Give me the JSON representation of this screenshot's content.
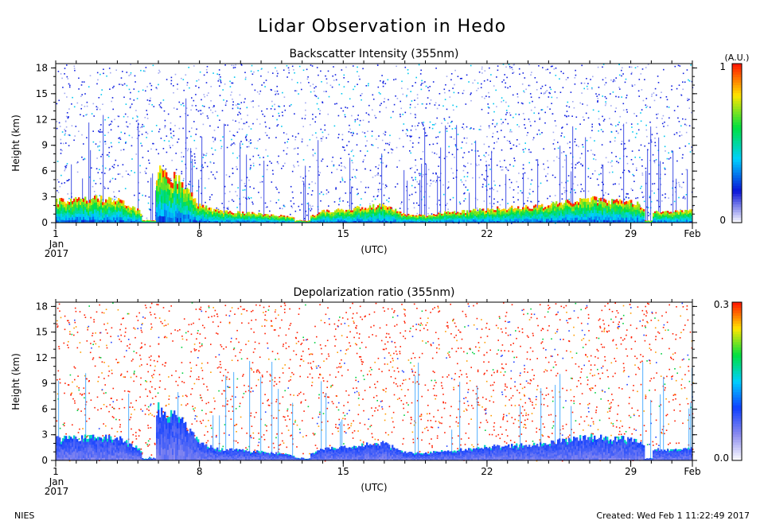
{
  "title": "Lidar Observation in Hedo",
  "footer": {
    "left": "NIES",
    "right": "Created: Wed Feb  1 11:22:49 2017"
  },
  "chart_data": [
    {
      "type": "heatmap",
      "title": "Backscatter Intensity (355nm)",
      "ylabel": "Height (km)",
      "xlabel": "(UTC)",
      "x_tick_labels": [
        "1",
        "8",
        "15",
        "22",
        "29",
        "Feb"
      ],
      "x_tick_sublabels": [
        "Jan",
        "2017"
      ],
      "x_tick_days": [
        1,
        8,
        15,
        22,
        29,
        32
      ],
      "xlim_days": [
        1,
        32
      ],
      "y_tick_labels": [
        "0",
        "3",
        "6",
        "9",
        "12",
        "15",
        "18"
      ],
      "ylim": [
        0,
        18.5
      ],
      "colorbar": {
        "min_label": "0",
        "max_label": "1",
        "unit": "(A.U.)"
      },
      "colorscale": [
        "#ffffff",
        "#0a14d8",
        "#00d0ff",
        "#00e040",
        "#ffe600",
        "#ff1400"
      ],
      "approx_cloud_top_km": [
        [
          1,
          2.5
        ],
        [
          2,
          2.6
        ],
        [
          3,
          2.8
        ],
        [
          4,
          2.7
        ],
        [
          5,
          1.5
        ],
        [
          5.5,
          0.3
        ],
        [
          6,
          6.0
        ],
        [
          7,
          5.0
        ],
        [
          8,
          2.0
        ],
        [
          9,
          1.3
        ],
        [
          10,
          1.2
        ],
        [
          11,
          1.0
        ],
        [
          12,
          0.8
        ],
        [
          13,
          0.4
        ],
        [
          14,
          1.3
        ],
        [
          15,
          1.5
        ],
        [
          16,
          1.8
        ],
        [
          17,
          2.0
        ],
        [
          18,
          1.0
        ],
        [
          19,
          0.8
        ],
        [
          20,
          1.2
        ],
        [
          21,
          1.3
        ],
        [
          22,
          1.6
        ],
        [
          23,
          1.7
        ],
        [
          24,
          1.8
        ],
        [
          25,
          2.0
        ],
        [
          26,
          2.5
        ],
        [
          27,
          2.8
        ],
        [
          28,
          2.5
        ],
        [
          29,
          2.6
        ],
        [
          30,
          1.2
        ],
        [
          31,
          1.3
        ],
        [
          32,
          1.4
        ]
      ]
    },
    {
      "type": "heatmap",
      "title": "Depolarization ratio (355nm)",
      "ylabel": "Height (km)",
      "xlabel": "(UTC)",
      "x_tick_labels": [
        "1",
        "8",
        "15",
        "22",
        "29",
        "Feb"
      ],
      "x_tick_sublabels": [
        "Jan",
        "2017"
      ],
      "x_tick_days": [
        1,
        8,
        15,
        22,
        29,
        32
      ],
      "xlim_days": [
        1,
        32
      ],
      "y_tick_labels": [
        "0",
        "3",
        "6",
        "9",
        "12",
        "15",
        "18"
      ],
      "ylim": [
        0,
        18.5
      ],
      "colorbar": {
        "min_label": "0.0",
        "max_label": "0.3",
        "unit": ""
      },
      "colorscale": [
        "#ffffff",
        "#8a8aee",
        "#1040ff",
        "#00d0ff",
        "#00e040",
        "#ffe600",
        "#ff1400"
      ]
    }
  ]
}
